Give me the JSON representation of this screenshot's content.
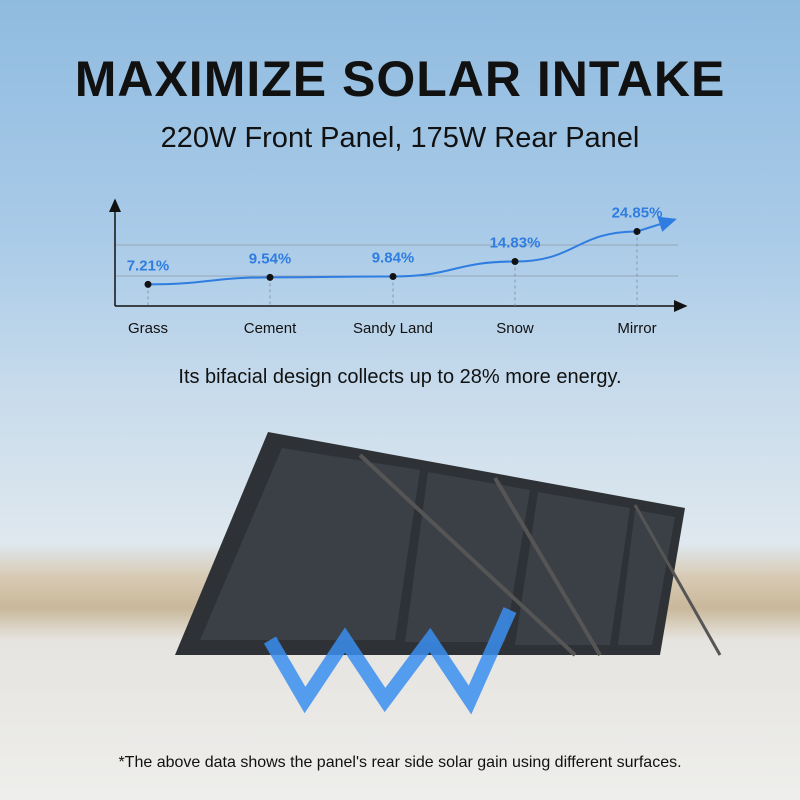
{
  "header": {
    "title": "MAXIMIZE SOLAR INTAKE",
    "subtitle": "220W Front Panel, 175W Rear Panel"
  },
  "tagline": "Its bifacial design collects up to 28% more energy.",
  "footnote": "*The above data shows the panel's rear side solar gain using different surfaces.",
  "colors": {
    "accent": "#2f7de0",
    "text": "#111111",
    "panel": "#2e3135"
  },
  "chart_data": {
    "type": "line",
    "categories": [
      "Grass",
      "Cement",
      "Sandy Land",
      "Snow",
      "Mirror"
    ],
    "values": [
      7.21,
      9.54,
      9.84,
      14.83,
      24.85
    ],
    "data_labels": [
      "7.21%",
      "9.54%",
      "9.84%",
      "14.83%",
      "24.85%"
    ],
    "title": "",
    "xlabel": "",
    "ylabel": "",
    "ylim": [
      0,
      36
    ],
    "grid": true,
    "legend": "none"
  }
}
